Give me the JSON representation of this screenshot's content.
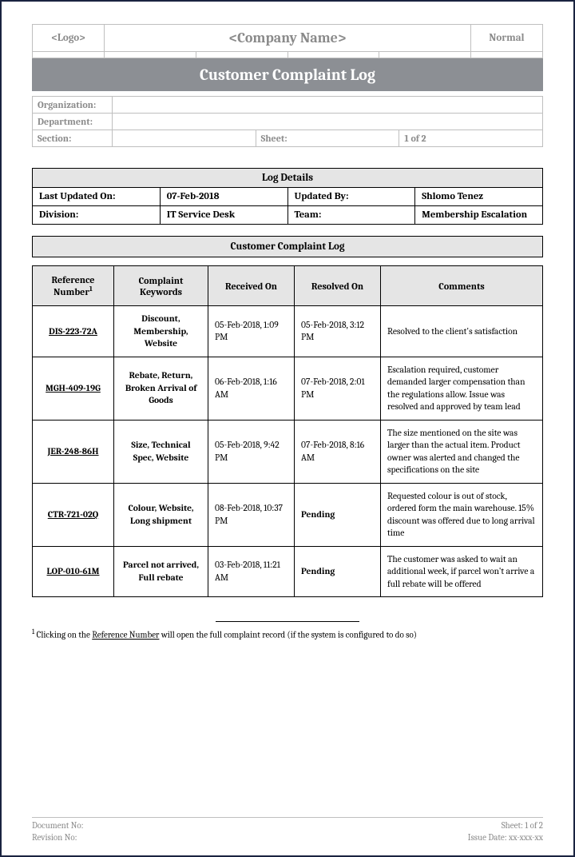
{
  "colors": {
    "page_border": "#1a2340",
    "cell_border_light": "#bfbfbf",
    "cell_border_dark": "#000000",
    "band_bg": "#8c8f94",
    "band_text": "#ffffff",
    "section_bg": "#e5e5e5",
    "muted_text": "#8a8a8a"
  },
  "header": {
    "logo_placeholder": "<Logo>",
    "company_placeholder": "<Company Name>",
    "status": "Normal"
  },
  "title_band": "Customer Complaint Log",
  "meta": {
    "organization_label": "Organization:",
    "organization_value": "",
    "department_label": "Department:",
    "department_value": "",
    "section_label": "Section:",
    "section_value": "",
    "sheet_label": "Sheet:",
    "sheet_value": "1 of 2"
  },
  "log_details": {
    "section_title": "Log Details",
    "last_updated_label": "Last Updated On:",
    "last_updated_value": "07-Feb-2018",
    "updated_by_label": "Updated By:",
    "updated_by_value": "Shlomo Tenez",
    "division_label": "Division:",
    "division_value": "IT Service Desk",
    "team_label": "Team:",
    "team_value": "Membership Escalation"
  },
  "complaint_section_title": "Customer Complaint Log",
  "columns": {
    "ref": "Reference Number",
    "ref_sup": "1",
    "kw": "Complaint Keywords",
    "rcv": "Received On",
    "res": "Resolved On",
    "cmt": "Comments"
  },
  "rows": [
    {
      "ref": "DIS-223-72A",
      "kw": "Discount, Membership, Website",
      "rcv": "05-Feb-2018, 1:09 PM",
      "res": "05-Feb-2018, 3:12 PM",
      "pending": false,
      "cmt": "Resolved to the client's satisfaction"
    },
    {
      "ref": "MGH-409-19G",
      "kw": "Rebate, Return, Broken Arrival of Goods",
      "rcv": "06-Feb-2018, 1:16 AM",
      "res": "07-Feb-2018, 2:01 PM",
      "pending": false,
      "cmt": "Escalation required, customer demanded larger compensation than the regulations allow. Issue was resolved and approved by team lead"
    },
    {
      "ref": "JER-248-86H",
      "kw": "Size, Technical Spec, Website",
      "rcv": "05-Feb-2018, 9:42 PM",
      "res": "07-Feb-2018, 8:16 AM",
      "pending": false,
      "cmt": "The size mentioned on the site was larger than the actual item. Product owner was alerted and changed the specifications on the site"
    },
    {
      "ref": "CTR-721-02Q",
      "kw": "Colour, Website, Long shipment",
      "rcv": "08-Feb-2018, 10:37 PM",
      "res": "Pending",
      "pending": true,
      "cmt": "Requested colour is out of stock, ordered form the main warehouse. 15% discount was offered due to long arrival time"
    },
    {
      "ref": "LOP-010-61M",
      "kw": "Parcel not arrived, Full rebate",
      "rcv": "03-Feb-2018, 11:21 AM",
      "res": "Pending",
      "pending": true,
      "cmt": "The customer was asked to wait an additional week, if parcel won't arrive a full rebate will be offered"
    }
  ],
  "footnote": {
    "sup": "1",
    "pre": " Clicking on the ",
    "link": "Reference Number",
    "post": " will open the full complaint record (if the system is configured to do so)"
  },
  "footer": {
    "doc_no_label": "Document No:",
    "rev_no_label": "Revision No:",
    "sheet_label": "Sheet: 1 of 2",
    "issue_label": "Issue Date: xx-xxx-xx"
  }
}
